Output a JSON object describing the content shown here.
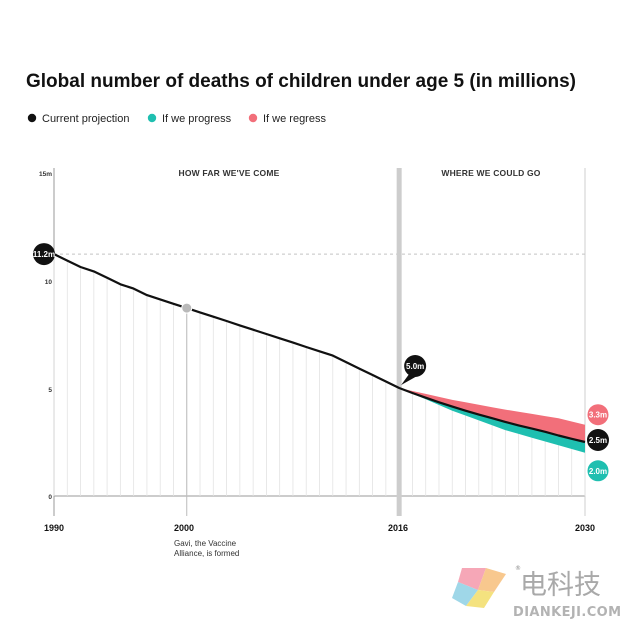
{
  "chart_data": {
    "type": "area",
    "title": "Global number of deaths of children under age 5 (in millions)",
    "legend": [
      {
        "label": "Current projection",
        "color": "#111111"
      },
      {
        "label": "If we progress",
        "color": "#1fbfb0"
      },
      {
        "label": "If we regress",
        "color": "#f26f7a"
      }
    ],
    "sections": [
      "HOW FAR WE'VE COME",
      "WHERE WE COULD GO"
    ],
    "y_ticks": [
      {
        "value": 15,
        "label": "15m"
      },
      {
        "value": 10,
        "label": "10"
      },
      {
        "value": 5,
        "label": "5"
      },
      {
        "value": 0,
        "label": "0"
      }
    ],
    "ylim": [
      0,
      15
    ],
    "xlim": [
      1990,
      2030
    ],
    "x_ticks": [
      "1990",
      "2000",
      "2016",
      "2030"
    ],
    "reference_line": 11.2,
    "series": [
      {
        "name": "Current projection",
        "x": [
          1990,
          1991,
          1992,
          1993,
          1994,
          1995,
          1996,
          1997,
          1998,
          1999,
          2000,
          2001,
          2002,
          2003,
          2004,
          2005,
          2006,
          2007,
          2008,
          2009,
          2010,
          2011,
          2012,
          2013,
          2014,
          2015,
          2016,
          2017,
          2018,
          2019,
          2020,
          2021,
          2022,
          2023,
          2024,
          2025,
          2026,
          2027,
          2028,
          2029,
          2030
        ],
        "values": [
          11.2,
          10.9,
          10.6,
          10.4,
          10.1,
          9.8,
          9.6,
          9.3,
          9.1,
          8.9,
          8.7,
          8.5,
          8.3,
          8.1,
          7.9,
          7.7,
          7.5,
          7.3,
          7.1,
          6.9,
          6.7,
          6.5,
          6.2,
          5.9,
          5.6,
          5.3,
          5.0,
          4.77,
          4.55,
          4.34,
          4.14,
          3.95,
          3.77,
          3.6,
          3.43,
          3.27,
          3.12,
          2.97,
          2.8,
          2.65,
          2.5
        ]
      },
      {
        "name": "If we progress",
        "x": [
          2016,
          2020,
          2024,
          2028,
          2030
        ],
        "values": [
          5.0,
          3.95,
          3.05,
          2.35,
          2.0
        ]
      },
      {
        "name": "If we regress",
        "x": [
          2016,
          2020,
          2024,
          2028,
          2030
        ],
        "values": [
          5.0,
          4.45,
          4.0,
          3.6,
          3.3
        ]
      }
    ],
    "badges": [
      {
        "label": "11.2m",
        "x": 1990,
        "value": 11.2,
        "color": "#111111"
      },
      {
        "label": "5.0m",
        "x": 2016,
        "value": 5.0,
        "color": "#111111"
      },
      {
        "label": "3.3m",
        "x": 2030,
        "value": 3.3,
        "color": "#f26f7a"
      },
      {
        "label": "2.5m",
        "x": 2030,
        "value": 2.5,
        "color": "#111111"
      },
      {
        "label": "2.0m",
        "x": 2030,
        "value": 2.0,
        "color": "#1fbfb0"
      }
    ],
    "marker": {
      "x": 2000,
      "value": 8.7
    },
    "annotation": [
      "Gavi, the Vaccine",
      "Alliance, is formed"
    ]
  },
  "watermark": {
    "brand": "电科技",
    "domain": "DIANKEJI.COM",
    "mark": "®"
  }
}
